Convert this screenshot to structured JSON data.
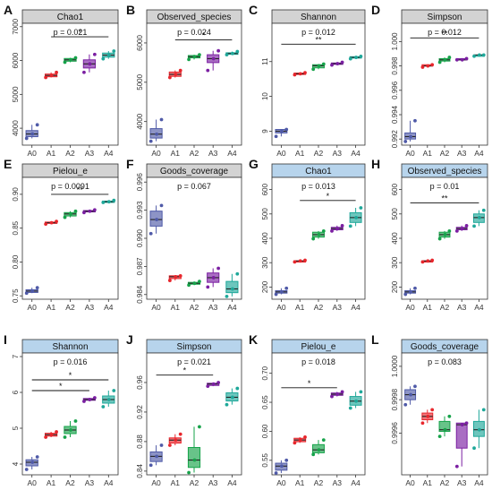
{
  "figure": {
    "strip_colors": {
      "grey": "#d3d3d3",
      "blue": "#b7d4ec"
    },
    "group_colors": {
      "A0": "#4f5aa8",
      "A1": "#e8262c",
      "A2": "#16a34a",
      "A3": "#7b1fa2",
      "A4": "#1fa89a"
    }
  },
  "chart_data": [
    {
      "type": "box",
      "letter": "A",
      "strip": "Chao1",
      "strip_color": "grey",
      "categories": [
        "A0",
        "A1",
        "A2",
        "A3",
        "A4"
      ],
      "pvalue": "p = 0.021",
      "ylim": [
        3500,
        7100
      ],
      "yticks": [
        "4000",
        "5000",
        "6000",
        "7000"
      ],
      "boxes": [
        [
          3700,
          3750,
          3830,
          3930,
          4100
        ],
        [
          5500,
          5520,
          5560,
          5600,
          5650
        ],
        [
          5950,
          5980,
          6020,
          6060,
          6080
        ],
        [
          5650,
          5780,
          5900,
          6020,
          6180
        ],
        [
          6050,
          6100,
          6160,
          6220,
          6280
        ]
      ],
      "points": [
        [
          3700,
          3830,
          4100
        ],
        [
          5500,
          5560,
          5650
        ],
        [
          5950,
          6020,
          6080
        ],
        [
          5650,
          5900,
          6180
        ],
        [
          6050,
          6160,
          6280
        ]
      ],
      "brackets": [
        {
          "from": 1,
          "to": 4,
          "value": 6700,
          "label": "*"
        }
      ]
    },
    {
      "type": "box",
      "letter": "B",
      "strip": "Observed_species",
      "strip_color": "grey",
      "categories": [
        "A0",
        "A1",
        "A2",
        "A3",
        "A4"
      ],
      "pvalue": "p = 0.024",
      "ylim": [
        3400,
        6500
      ],
      "yticks": [
        "4000",
        "5000",
        "6000"
      ],
      "boxes": [
        [
          3500,
          3580,
          3680,
          3820,
          4050
        ],
        [
          5120,
          5150,
          5200,
          5260,
          5300
        ],
        [
          5580,
          5620,
          5650,
          5680,
          5700
        ],
        [
          5300,
          5500,
          5600,
          5700,
          5800
        ],
        [
          5700,
          5710,
          5730,
          5750,
          5780
        ]
      ],
      "points": [
        [
          3500,
          3680,
          4050
        ],
        [
          5120,
          5200,
          5300
        ],
        [
          5580,
          5650,
          5700
        ],
        [
          5300,
          5600,
          5800
        ],
        [
          5700,
          5730,
          5780
        ]
      ],
      "brackets": [
        {
          "from": 1,
          "to": 4,
          "value": 6080,
          "label": "*"
        }
      ]
    },
    {
      "type": "box",
      "letter": "C",
      "strip": "Shannon",
      "strip_color": "grey",
      "categories": [
        "A0",
        "A1",
        "A2",
        "A3",
        "A4"
      ],
      "pvalue": "p = 0.012",
      "ylim": [
        8.6,
        12.1
      ],
      "yticks": [
        "9",
        "10",
        "11"
      ],
      "boxes": [
        [
          8.85,
          8.95,
          9.0,
          9.05,
          9.05
        ],
        [
          10.62,
          10.63,
          10.65,
          10.67,
          10.68
        ],
        [
          10.78,
          10.82,
          10.88,
          10.91,
          10.93
        ],
        [
          10.9,
          10.92,
          10.94,
          10.96,
          10.98
        ],
        [
          11.08,
          11.1,
          11.12,
          11.14,
          11.15
        ]
      ],
      "points": [
        [
          8.85,
          9.0,
          9.05
        ],
        [
          10.62,
          10.65,
          10.68
        ],
        [
          10.78,
          10.88,
          10.93
        ],
        [
          10.9,
          10.94,
          10.98
        ],
        [
          11.08,
          11.12,
          11.15
        ]
      ],
      "brackets": [
        {
          "from": 0,
          "to": 4,
          "value": 11.5,
          "label": "**"
        }
      ]
    },
    {
      "type": "box",
      "letter": "D",
      "strip": "Simpson",
      "strip_color": "grey",
      "categories": [
        "A0",
        "A1",
        "A2",
        "A3",
        "A4"
      ],
      "pvalue": "p = 0.012",
      "ylim": [
        0.9915,
        1.0015
      ],
      "yticks": [
        "0.992",
        "0.994",
        "0.996",
        "0.998",
        "1.000"
      ],
      "boxes": [
        [
          0.9918,
          0.992,
          0.9922,
          0.9925,
          0.9935
        ],
        [
          0.9979,
          0.998,
          0.998,
          0.9981,
          0.9981
        ],
        [
          0.9983,
          0.9984,
          0.9985,
          0.9986,
          0.9987
        ],
        [
          0.9985,
          0.9985,
          0.9985,
          0.9986,
          0.9986
        ],
        [
          0.9988,
          0.9988,
          0.9989,
          0.9989,
          0.9989
        ]
      ],
      "points": [
        [
          0.9918,
          0.9922,
          0.9935
        ],
        [
          0.9979,
          0.998,
          0.9981
        ],
        [
          0.9983,
          0.9985,
          0.9987
        ],
        [
          0.9985,
          0.9985,
          0.9986
        ],
        [
          0.9988,
          0.9989,
          0.9989
        ]
      ],
      "brackets": [
        {
          "from": 0,
          "to": 4,
          "value": 1.0003,
          "label": "**"
        }
      ]
    },
    {
      "type": "box",
      "letter": "E",
      "strip": "Pielou_e",
      "strip_color": "grey",
      "categories": [
        "A0",
        "A1",
        "A2",
        "A3",
        "A4"
      ],
      "pvalue": "p = 0.0091",
      "ylim": [
        0.745,
        0.925
      ],
      "yticks": [
        "0.75",
        "0.80",
        "0.85",
        "0.90"
      ],
      "boxes": [
        [
          0.754,
          0.755,
          0.757,
          0.759,
          0.762
        ],
        [
          0.856,
          0.857,
          0.858,
          0.859,
          0.86
        ],
        [
          0.866,
          0.868,
          0.871,
          0.873,
          0.875
        ],
        [
          0.873,
          0.874,
          0.875,
          0.876,
          0.877
        ],
        [
          0.888,
          0.888,
          0.889,
          0.89,
          0.891
        ]
      ],
      "points": [
        [
          0.754,
          0.757,
          0.762
        ],
        [
          0.856,
          0.858,
          0.86
        ],
        [
          0.866,
          0.871,
          0.875
        ],
        [
          0.873,
          0.875,
          0.877
        ],
        [
          0.888,
          0.889,
          0.891
        ]
      ],
      "brackets": [
        {
          "from": 1,
          "to": 4,
          "value": 0.9,
          "label": "**"
        }
      ]
    },
    {
      "type": "box",
      "letter": "F",
      "strip": "Goods_coverage",
      "strip_color": "grey",
      "categories": [
        "A0",
        "A1",
        "A2",
        "A3",
        "A4"
      ],
      "pvalue": "p = 0.067",
      "ylim": [
        0.9835,
        0.9965
      ],
      "yticks": [
        "0.984",
        "0.987",
        "0.990",
        "0.993",
        "0.996"
      ],
      "boxes": [
        [
          0.9905,
          0.9913,
          0.992,
          0.9929,
          0.9935
        ],
        [
          0.9855,
          0.9857,
          0.9859,
          0.986,
          0.986
        ],
        [
          0.985,
          0.9851,
          0.9852,
          0.9853,
          0.9854
        ],
        [
          0.9848,
          0.9853,
          0.9858,
          0.9863,
          0.9868
        ],
        [
          0.9838,
          0.9842,
          0.9846,
          0.9854,
          0.9862
        ]
      ],
      "points": [
        [
          0.9905,
          0.992,
          0.9935
        ],
        [
          0.9855,
          0.9859,
          0.986
        ],
        [
          0.985,
          0.9852,
          0.9854
        ],
        [
          0.9848,
          0.9858,
          0.9868
        ],
        [
          0.9838,
          0.9846,
          0.9862
        ]
      ],
      "brackets": []
    },
    {
      "type": "box",
      "letter": "G",
      "strip": "Chao1",
      "strip_color": "blue",
      "categories": [
        "A0",
        "A1",
        "A2",
        "A3",
        "A4"
      ],
      "pvalue": "p = 0.013",
      "ylim": [
        150,
        650
      ],
      "yticks": [
        "200",
        "300",
        "400",
        "500",
        "600"
      ],
      "boxes": [
        [
          170,
          175,
          180,
          185,
          195
        ],
        [
          303,
          305,
          307,
          308,
          310
        ],
        [
          398,
          405,
          415,
          425,
          430
        ],
        [
          430,
          435,
          440,
          445,
          452
        ],
        [
          450,
          465,
          485,
          505,
          525
        ]
      ],
      "points": [
        [
          170,
          180,
          195
        ],
        [
          303,
          307,
          310
        ],
        [
          398,
          415,
          430
        ],
        [
          430,
          440,
          452
        ],
        [
          450,
          485,
          525
        ]
      ],
      "brackets": [
        {
          "from": 1,
          "to": 4,
          "value": 555,
          "label": "*"
        }
      ]
    },
    {
      "type": "box",
      "letter": "H",
      "strip": "Observed_species",
      "strip_color": "blue",
      "categories": [
        "A0",
        "A1",
        "A2",
        "A3",
        "A4"
      ],
      "pvalue": "p = 0.01",
      "ylim": [
        150,
        650
      ],
      "yticks": [
        "200",
        "300",
        "400",
        "500",
        "600"
      ],
      "boxes": [
        [
          170,
          175,
          180,
          185,
          195
        ],
        [
          303,
          305,
          307,
          308,
          310
        ],
        [
          398,
          405,
          415,
          425,
          430
        ],
        [
          430,
          435,
          440,
          445,
          452
        ],
        [
          450,
          465,
          485,
          500,
          515
        ]
      ],
      "points": [
        [
          170,
          180,
          195
        ],
        [
          303,
          307,
          310
        ],
        [
          398,
          415,
          430
        ],
        [
          430,
          440,
          452
        ],
        [
          450,
          485,
          515
        ]
      ],
      "brackets": [
        {
          "from": 0,
          "to": 4,
          "value": 545,
          "label": "**"
        }
      ]
    },
    {
      "type": "box",
      "letter": "I",
      "strip": "Shannon",
      "strip_color": "blue",
      "categories": [
        "A0",
        "A1",
        "A2",
        "A3",
        "A4"
      ],
      "pvalue": "p = 0.016",
      "ylim": [
        3.7,
        7.1
      ],
      "yticks": [
        "4",
        "5",
        "6",
        "7"
      ],
      "boxes": [
        [
          3.85,
          3.95,
          4.05,
          4.12,
          4.2
        ],
        [
          4.75,
          4.78,
          4.82,
          4.86,
          4.9
        ],
        [
          4.75,
          4.85,
          4.95,
          5.05,
          5.2
        ],
        [
          5.75,
          5.78,
          5.8,
          5.83,
          5.85
        ],
        [
          5.6,
          5.7,
          5.8,
          5.9,
          6.05
        ]
      ],
      "points": [
        [
          3.85,
          4.05,
          4.2
        ],
        [
          4.75,
          4.82,
          4.9
        ],
        [
          4.75,
          4.95,
          5.2
        ],
        [
          5.75,
          5.8,
          5.85
        ],
        [
          5.6,
          5.8,
          6.05
        ]
      ],
      "brackets": [
        {
          "from": 0,
          "to": 4,
          "value": 6.35,
          "label": "*"
        },
        {
          "from": 0,
          "to": 3,
          "value": 6.05,
          "label": "*"
        }
      ]
    },
    {
      "type": "box",
      "letter": "J",
      "strip": "Simpson",
      "strip_color": "blue",
      "categories": [
        "A0",
        "A1",
        "A2",
        "A3",
        "A4"
      ],
      "pvalue": "p = 0.021",
      "ylim": [
        0.835,
        1.0
      ],
      "yticks": [
        "0.84",
        "0.88",
        "0.92",
        "0.96"
      ],
      "boxes": [
        [
          0.848,
          0.853,
          0.86,
          0.866,
          0.875
        ],
        [
          0.875,
          0.878,
          0.882,
          0.885,
          0.89
        ],
        [
          0.838,
          0.845,
          0.855,
          0.872,
          0.9
        ],
        [
          0.955,
          0.956,
          0.958,
          0.959,
          0.96
        ],
        [
          0.93,
          0.935,
          0.94,
          0.946,
          0.952
        ]
      ],
      "points": [
        [
          0.848,
          0.86,
          0.875
        ],
        [
          0.875,
          0.882,
          0.89
        ],
        [
          0.838,
          0.855,
          0.9
        ],
        [
          0.955,
          0.958,
          0.96
        ],
        [
          0.93,
          0.94,
          0.952
        ]
      ],
      "brackets": [
        {
          "from": 0,
          "to": 3,
          "value": 0.97,
          "label": "*"
        }
      ]
    },
    {
      "type": "box",
      "letter": "K",
      "strip": "Pielou_e",
      "strip_color": "blue",
      "categories": [
        "A0",
        "A1",
        "A2",
        "A3",
        "A4"
      ],
      "pvalue": "p = 0.018",
      "ylim": [
        0.525,
        0.735
      ],
      "yticks": [
        "0.55",
        "0.60",
        "0.65",
        "0.70"
      ],
      "boxes": [
        [
          0.528,
          0.533,
          0.54,
          0.545,
          0.55
        ],
        [
          0.58,
          0.582,
          0.585,
          0.588,
          0.59
        ],
        [
          0.56,
          0.563,
          0.568,
          0.577,
          0.585
        ],
        [
          0.66,
          0.662,
          0.664,
          0.666,
          0.668
        ],
        [
          0.64,
          0.645,
          0.652,
          0.66,
          0.668
        ]
      ],
      "points": [
        [
          0.528,
          0.54,
          0.55
        ],
        [
          0.58,
          0.585,
          0.59
        ],
        [
          0.56,
          0.568,
          0.585
        ],
        [
          0.66,
          0.664,
          0.668
        ],
        [
          0.64,
          0.652,
          0.668
        ]
      ],
      "brackets": [
        {
          "from": 0,
          "to": 3,
          "value": 0.675,
          "label": "*"
        }
      ]
    },
    {
      "type": "box",
      "letter": "L",
      "strip": "Goods_coverage",
      "strip_color": "blue",
      "categories": [
        "A0",
        "A1",
        "A2",
        "A3",
        "A4"
      ],
      "pvalue": "p = 0.083",
      "ylim": [
        0.99935,
        1.00008
      ],
      "yticks": [
        "0.9996",
        "0.9998",
        "1.0000"
      ],
      "boxes": [
        [
          0.99977,
          0.9998,
          0.99983,
          0.99986,
          0.99988
        ],
        [
          0.99966,
          0.99968,
          0.9997,
          0.99972,
          0.99974
        ],
        [
          0.99958,
          0.99961,
          0.99962,
          0.99967,
          0.9997
        ],
        [
          0.9994,
          0.99951,
          0.99965,
          0.99966,
          0.99966
        ],
        [
          0.99951,
          0.99958,
          0.99962,
          0.99967,
          0.99974
        ]
      ],
      "points": [
        [
          0.99977,
          0.99983,
          0.99988
        ],
        [
          0.99966,
          0.9997,
          0.99974
        ],
        [
          0.99958,
          0.99962,
          0.9997
        ],
        [
          0.9994,
          0.99965,
          0.99966
        ],
        [
          0.99951,
          0.99962,
          0.99974
        ]
      ],
      "brackets": []
    }
  ]
}
